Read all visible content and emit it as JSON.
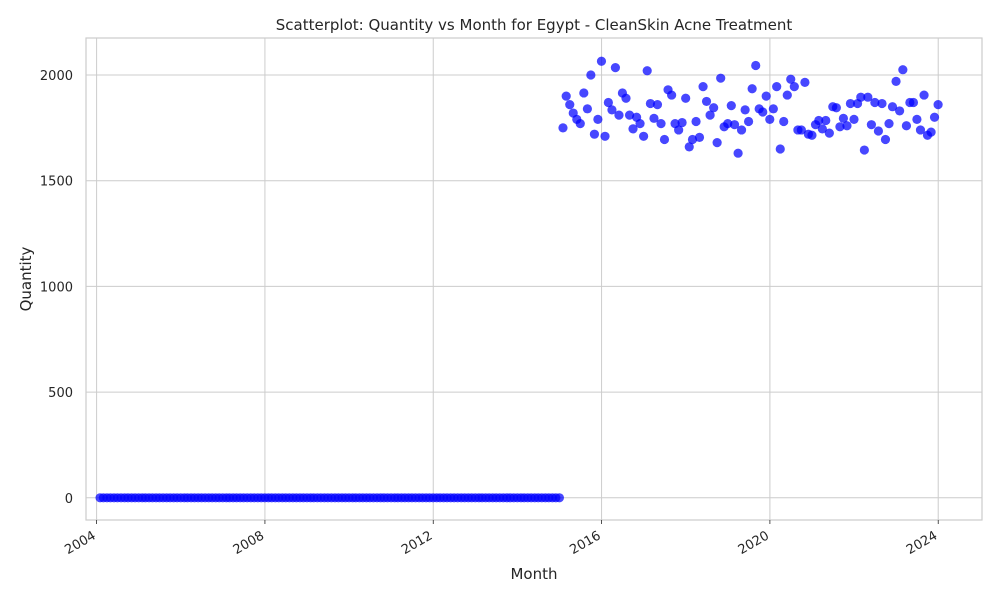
{
  "chart_data": {
    "type": "scatter",
    "title": "Scatterplot: Quantity vs Month for Egypt - CleanSkin Acne Treatment",
    "xlabel": "Month",
    "ylabel": "Quantity",
    "x_ticks": [
      "2004",
      "2008",
      "2012",
      "2016",
      "2020",
      "2024"
    ],
    "y_ticks": [
      "0",
      "500",
      "1000",
      "1500",
      "2000"
    ],
    "xlim": [
      "2003-10-01",
      "2025-01-15"
    ],
    "ylim": [
      -105,
      2175
    ],
    "grid": true,
    "point_color": "#0000ff",
    "points": [
      [
        "2004-01-31",
        0
      ],
      [
        "2004-02-29",
        0
      ],
      [
        "2004-03-31",
        0
      ],
      [
        "2004-04-30",
        0
      ],
      [
        "2004-05-31",
        0
      ],
      [
        "2004-06-30",
        0
      ],
      [
        "2004-07-31",
        0
      ],
      [
        "2004-08-31",
        0
      ],
      [
        "2004-09-30",
        0
      ],
      [
        "2004-10-31",
        0
      ],
      [
        "2004-11-30",
        0
      ],
      [
        "2004-12-31",
        0
      ],
      [
        "2005-01-31",
        0
      ],
      [
        "2005-02-28",
        0
      ],
      [
        "2005-03-31",
        0
      ],
      [
        "2005-04-30",
        0
      ],
      [
        "2005-05-31",
        0
      ],
      [
        "2005-06-30",
        0
      ],
      [
        "2005-07-31",
        0
      ],
      [
        "2005-08-31",
        0
      ],
      [
        "2005-09-30",
        0
      ],
      [
        "2005-10-31",
        0
      ],
      [
        "2005-11-30",
        0
      ],
      [
        "2005-12-31",
        0
      ],
      [
        "2006-01-31",
        0
      ],
      [
        "2006-02-28",
        0
      ],
      [
        "2006-03-31",
        0
      ],
      [
        "2006-04-30",
        0
      ],
      [
        "2006-05-31",
        0
      ],
      [
        "2006-06-30",
        0
      ],
      [
        "2006-07-31",
        0
      ],
      [
        "2006-08-31",
        0
      ],
      [
        "2006-09-30",
        0
      ],
      [
        "2006-10-31",
        0
      ],
      [
        "2006-11-30",
        0
      ],
      [
        "2006-12-31",
        0
      ],
      [
        "2007-01-31",
        0
      ],
      [
        "2007-02-28",
        0
      ],
      [
        "2007-03-31",
        0
      ],
      [
        "2007-04-30",
        0
      ],
      [
        "2007-05-31",
        0
      ],
      [
        "2007-06-30",
        0
      ],
      [
        "2007-07-31",
        0
      ],
      [
        "2007-08-31",
        0
      ],
      [
        "2007-09-30",
        0
      ],
      [
        "2007-10-31",
        0
      ],
      [
        "2007-11-30",
        0
      ],
      [
        "2007-12-31",
        0
      ],
      [
        "2008-01-31",
        0
      ],
      [
        "2008-02-29",
        0
      ],
      [
        "2008-03-31",
        0
      ],
      [
        "2008-04-30",
        0
      ],
      [
        "2008-05-31",
        0
      ],
      [
        "2008-06-30",
        0
      ],
      [
        "2008-07-31",
        0
      ],
      [
        "2008-08-31",
        0
      ],
      [
        "2008-09-30",
        0
      ],
      [
        "2008-10-31",
        0
      ],
      [
        "2008-11-30",
        0
      ],
      [
        "2008-12-31",
        0
      ],
      [
        "2009-01-31",
        0
      ],
      [
        "2009-02-28",
        0
      ],
      [
        "2009-03-31",
        0
      ],
      [
        "2009-04-30",
        0
      ],
      [
        "2009-05-31",
        0
      ],
      [
        "2009-06-30",
        0
      ],
      [
        "2009-07-31",
        0
      ],
      [
        "2009-08-31",
        0
      ],
      [
        "2009-09-30",
        0
      ],
      [
        "2009-10-31",
        0
      ],
      [
        "2009-11-30",
        0
      ],
      [
        "2009-12-31",
        0
      ],
      [
        "2010-01-31",
        0
      ],
      [
        "2010-02-28",
        0
      ],
      [
        "2010-03-31",
        0
      ],
      [
        "2010-04-30",
        0
      ],
      [
        "2010-05-31",
        0
      ],
      [
        "2010-06-30",
        0
      ],
      [
        "2010-07-31",
        0
      ],
      [
        "2010-08-31",
        0
      ],
      [
        "2010-09-30",
        0
      ],
      [
        "2010-10-31",
        0
      ],
      [
        "2010-11-30",
        0
      ],
      [
        "2010-12-31",
        0
      ],
      [
        "2011-01-31",
        0
      ],
      [
        "2011-02-28",
        0
      ],
      [
        "2011-03-31",
        0
      ],
      [
        "2011-04-30",
        0
      ],
      [
        "2011-05-31",
        0
      ],
      [
        "2011-06-30",
        0
      ],
      [
        "2011-07-31",
        0
      ],
      [
        "2011-08-31",
        0
      ],
      [
        "2011-09-30",
        0
      ],
      [
        "2011-10-31",
        0
      ],
      [
        "2011-11-30",
        0
      ],
      [
        "2011-12-31",
        0
      ],
      [
        "2012-01-31",
        0
      ],
      [
        "2012-02-29",
        0
      ],
      [
        "2012-03-31",
        0
      ],
      [
        "2012-04-30",
        0
      ],
      [
        "2012-05-31",
        0
      ],
      [
        "2012-06-30",
        0
      ],
      [
        "2012-07-31",
        0
      ],
      [
        "2012-08-31",
        0
      ],
      [
        "2012-09-30",
        0
      ],
      [
        "2012-10-31",
        0
      ],
      [
        "2012-11-30",
        0
      ],
      [
        "2012-12-31",
        0
      ],
      [
        "2013-01-31",
        0
      ],
      [
        "2013-02-28",
        0
      ],
      [
        "2013-03-31",
        0
      ],
      [
        "2013-04-30",
        0
      ],
      [
        "2013-05-31",
        0
      ],
      [
        "2013-06-30",
        0
      ],
      [
        "2013-07-31",
        0
      ],
      [
        "2013-08-31",
        0
      ],
      [
        "2013-09-30",
        0
      ],
      [
        "2013-10-31",
        0
      ],
      [
        "2013-11-30",
        0
      ],
      [
        "2013-12-31",
        0
      ],
      [
        "2014-01-31",
        0
      ],
      [
        "2014-02-28",
        0
      ],
      [
        "2014-03-31",
        0
      ],
      [
        "2014-04-30",
        0
      ],
      [
        "2014-05-31",
        0
      ],
      [
        "2014-06-30",
        0
      ],
      [
        "2014-07-31",
        0
      ],
      [
        "2014-08-31",
        0
      ],
      [
        "2014-09-30",
        0
      ],
      [
        "2014-10-31",
        0
      ],
      [
        "2014-11-30",
        0
      ],
      [
        "2014-12-31",
        0
      ],
      [
        "2015-01-31",
        1750
      ],
      [
        "2015-02-28",
        1900
      ],
      [
        "2015-03-31",
        1860
      ],
      [
        "2015-04-30",
        1820
      ],
      [
        "2015-05-31",
        1790
      ],
      [
        "2015-06-30",
        1770
      ],
      [
        "2015-07-31",
        1915
      ],
      [
        "2015-08-31",
        1840
      ],
      [
        "2015-09-30",
        2000
      ],
      [
        "2015-10-31",
        1720
      ],
      [
        "2015-11-30",
        1790
      ],
      [
        "2015-12-31",
        2065
      ],
      [
        "2016-01-31",
        1710
      ],
      [
        "2016-02-29",
        1870
      ],
      [
        "2016-03-31",
        1835
      ],
      [
        "2016-04-30",
        2035
      ],
      [
        "2016-05-31",
        1810
      ],
      [
        "2016-06-30",
        1915
      ],
      [
        "2016-07-31",
        1890
      ],
      [
        "2016-08-31",
        1810
      ],
      [
        "2016-09-30",
        1745
      ],
      [
        "2016-10-31",
        1800
      ],
      [
        "2016-11-30",
        1770
      ],
      [
        "2016-12-31",
        1710
      ],
      [
        "2017-01-31",
        2020
      ],
      [
        "2017-02-28",
        1865
      ],
      [
        "2017-03-31",
        1795
      ],
      [
        "2017-04-30",
        1860
      ],
      [
        "2017-05-31",
        1770
      ],
      [
        "2017-06-30",
        1695
      ],
      [
        "2017-07-31",
        1930
      ],
      [
        "2017-08-31",
        1905
      ],
      [
        "2017-09-30",
        1770
      ],
      [
        "2017-10-31",
        1740
      ],
      [
        "2017-11-30",
        1775
      ],
      [
        "2017-12-31",
        1890
      ],
      [
        "2018-01-31",
        1660
      ],
      [
        "2018-02-28",
        1695
      ],
      [
        "2018-03-31",
        1780
      ],
      [
        "2018-04-30",
        1705
      ],
      [
        "2018-05-31",
        1945
      ],
      [
        "2018-06-30",
        1875
      ],
      [
        "2018-07-31",
        1810
      ],
      [
        "2018-08-31",
        1845
      ],
      [
        "2018-09-30",
        1680
      ],
      [
        "2018-10-31",
        1985
      ],
      [
        "2018-11-30",
        1755
      ],
      [
        "2018-12-31",
        1770
      ],
      [
        "2019-01-31",
        1855
      ],
      [
        "2019-02-28",
        1765
      ],
      [
        "2019-03-31",
        1630
      ],
      [
        "2019-04-30",
        1740
      ],
      [
        "2019-05-31",
        1835
      ],
      [
        "2019-06-30",
        1780
      ],
      [
        "2019-07-31",
        1935
      ],
      [
        "2019-08-31",
        2045
      ],
      [
        "2019-09-30",
        1840
      ],
      [
        "2019-10-31",
        1825
      ],
      [
        "2019-11-30",
        1900
      ],
      [
        "2019-12-31",
        1790
      ],
      [
        "2020-01-31",
        1840
      ],
      [
        "2020-02-29",
        1945
      ],
      [
        "2020-03-31",
        1650
      ],
      [
        "2020-04-30",
        1780
      ],
      [
        "2020-05-31",
        1905
      ],
      [
        "2020-06-30",
        1980
      ],
      [
        "2020-07-31",
        1945
      ],
      [
        "2020-08-31",
        1740
      ],
      [
        "2020-09-30",
        1740
      ],
      [
        "2020-10-31",
        1965
      ],
      [
        "2020-11-30",
        1720
      ],
      [
        "2020-12-31",
        1715
      ],
      [
        "2021-01-31",
        1765
      ],
      [
        "2021-02-28",
        1785
      ],
      [
        "2021-03-31",
        1745
      ],
      [
        "2021-04-30",
        1785
      ],
      [
        "2021-05-31",
        1725
      ],
      [
        "2021-06-30",
        1850
      ],
      [
        "2021-07-31",
        1845
      ],
      [
        "2021-08-31",
        1755
      ],
      [
        "2021-09-30",
        1795
      ],
      [
        "2021-10-31",
        1760
      ],
      [
        "2021-11-30",
        1865
      ],
      [
        "2021-12-31",
        1790
      ],
      [
        "2022-01-31",
        1865
      ],
      [
        "2022-02-28",
        1895
      ],
      [
        "2022-03-31",
        1645
      ],
      [
        "2022-04-30",
        1895
      ],
      [
        "2022-05-31",
        1765
      ],
      [
        "2022-06-30",
        1870
      ],
      [
        "2022-07-31",
        1735
      ],
      [
        "2022-08-31",
        1865
      ],
      [
        "2022-09-30",
        1695
      ],
      [
        "2022-10-31",
        1770
      ],
      [
        "2022-11-30",
        1850
      ],
      [
        "2022-12-31",
        1970
      ],
      [
        "2023-01-31",
        1830
      ],
      [
        "2023-02-28",
        2025
      ],
      [
        "2023-03-31",
        1760
      ],
      [
        "2023-04-30",
        1870
      ],
      [
        "2023-05-31",
        1870
      ],
      [
        "2023-06-30",
        1790
      ],
      [
        "2023-07-31",
        1740
      ],
      [
        "2023-08-31",
        1905
      ],
      [
        "2023-09-30",
        1715
      ],
      [
        "2023-10-31",
        1730
      ],
      [
        "2023-11-30",
        1800
      ],
      [
        "2023-12-31",
        1860
      ]
    ]
  }
}
